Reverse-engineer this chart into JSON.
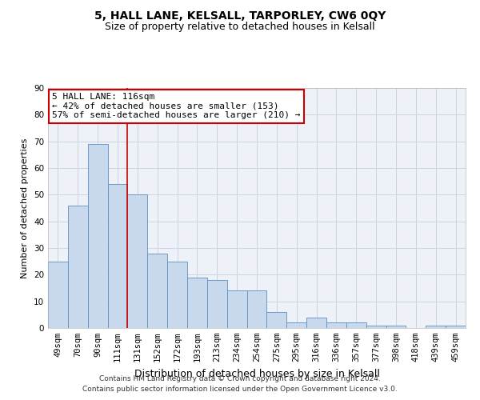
{
  "title": "5, HALL LANE, KELSALL, TARPORLEY, CW6 0QY",
  "subtitle": "Size of property relative to detached houses in Kelsall",
  "xlabel": "Distribution of detached houses by size in Kelsall",
  "ylabel": "Number of detached properties",
  "categories": [
    "49sqm",
    "70sqm",
    "90sqm",
    "111sqm",
    "131sqm",
    "152sqm",
    "172sqm",
    "193sqm",
    "213sqm",
    "234sqm",
    "254sqm",
    "275sqm",
    "295sqm",
    "316sqm",
    "336sqm",
    "357sqm",
    "377sqm",
    "398sqm",
    "418sqm",
    "439sqm",
    "459sqm"
  ],
  "values": [
    25,
    46,
    69,
    54,
    50,
    28,
    25,
    19,
    18,
    14,
    14,
    6,
    2,
    4,
    2,
    2,
    1,
    1,
    0,
    1,
    1
  ],
  "bar_color": "#c8d9ee",
  "bar_edge_color": "#5a8fc2",
  "vline_x": 3.5,
  "vline_color": "#cc0000",
  "annotation_line1": "5 HALL LANE: 116sqm",
  "annotation_line2": "← 42% of detached houses are smaller (153)",
  "annotation_line3": "57% of semi-detached houses are larger (210) →",
  "annotation_box_color": "#cc0000",
  "ylim": [
    0,
    90
  ],
  "yticks": [
    0,
    10,
    20,
    30,
    40,
    50,
    60,
    70,
    80,
    90
  ],
  "grid_color": "#ccd4e0",
  "background_color": "#eef2f8",
  "footer_line1": "Contains HM Land Registry data © Crown copyright and database right 2024.",
  "footer_line2": "Contains public sector information licensed under the Open Government Licence v3.0.",
  "title_fontsize": 10,
  "subtitle_fontsize": 9,
  "xlabel_fontsize": 9,
  "ylabel_fontsize": 8,
  "tick_fontsize": 7.5,
  "annotation_fontsize": 8,
  "footer_fontsize": 6.5
}
